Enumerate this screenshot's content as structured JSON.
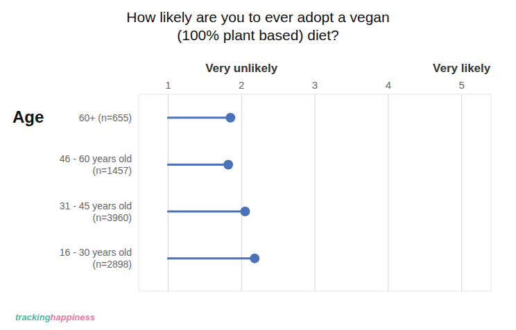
{
  "chart_data": {
    "type": "lollipop",
    "orientation": "horizontal",
    "title": "How likely are you to ever adopt a vegan\n(100% plant based) diet?",
    "ylabel": "Age",
    "categories": [
      "60+ (n=655)",
      "46 - 60 years old\n(n=1457)",
      "31 - 45 years old\n(n=3960)",
      "16 - 30 years old\n(n=2898)"
    ],
    "values": [
      1.85,
      1.82,
      2.05,
      2.18
    ],
    "baseline": 1.0,
    "color": "#4a72b8",
    "xlim": [
      0.6,
      5.4
    ],
    "xticks": [
      1,
      2,
      3,
      4,
      5
    ],
    "grid": true,
    "annotations": [
      {
        "text": "Very unlikely",
        "x": 2
      },
      {
        "text": "Very likely",
        "x": 5
      },
      {
        "text": "tracking",
        "color": "#4db8a0"
      },
      {
        "text": "happiness",
        "color": "#e879a0"
      }
    ]
  }
}
